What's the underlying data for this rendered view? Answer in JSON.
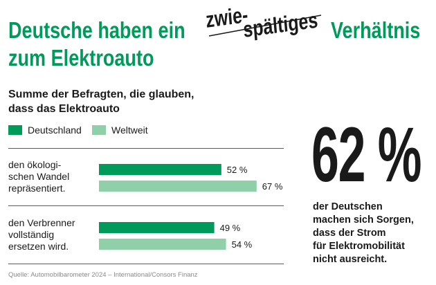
{
  "header": {
    "title_line1": "Deutsche haben ein",
    "title_line2": "zum Elektroauto",
    "hand_word1": "zwie-",
    "hand_word2": "spältiges",
    "title_word3": "Verhältnis"
  },
  "subtitle": {
    "line1": "Summe der Befragten, die glauben,",
    "line2": "dass das Elektroauto"
  },
  "legend": {
    "items": [
      {
        "label": "Deutschland",
        "color": "#009a5a"
      },
      {
        "label": "Weltweit",
        "color": "#8fd0a8"
      }
    ]
  },
  "chart_data": {
    "type": "bar",
    "orientation": "horizontal",
    "categories": [
      [
        "den ökologi-",
        "schen Wandel",
        "repräsentiert."
      ],
      [
        "den Verbrenner",
        "vollständig",
        "ersetzen wird."
      ]
    ],
    "series": [
      {
        "name": "Deutschland",
        "values": [
          52,
          49
        ],
        "color": "#009a5a"
      },
      {
        "name": "Weltweit",
        "values": [
          67,
          54
        ],
        "color": "#8fd0a8"
      }
    ],
    "value_suffix": " %",
    "xlim": [
      0,
      100
    ],
    "grid": false,
    "legend_position": "top-left"
  },
  "highlight": {
    "value": "62 %",
    "text_lines": [
      "der Deutschen",
      "machen sich Sorgen,",
      "dass der Strom",
      "für Elektromobilität",
      "nicht ausreicht."
    ]
  },
  "source": "Quelle: Automobilbarometer 2024 – International/Consors Finanz"
}
